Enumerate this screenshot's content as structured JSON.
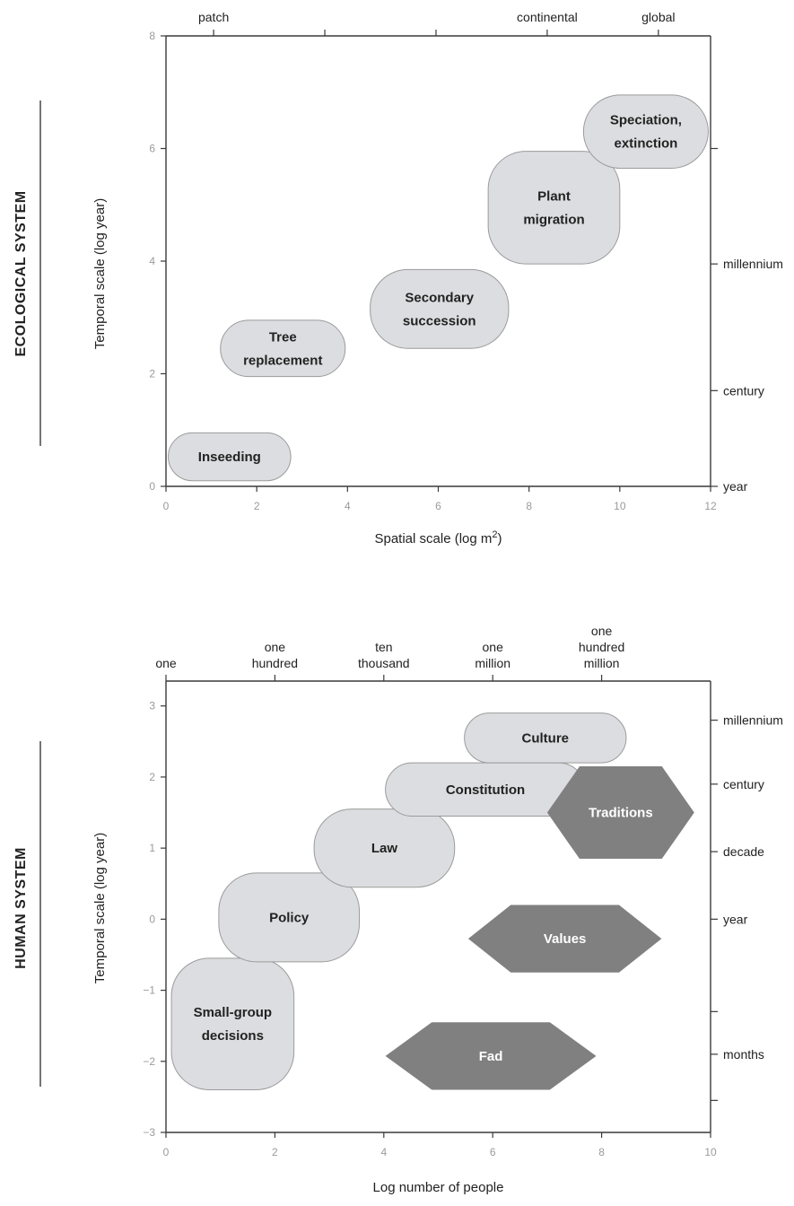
{
  "chart_data": [
    {
      "type": "scatter",
      "system_label": "ECOLOGICAL SYSTEM",
      "xlabel": "Spatial scale (log m",
      "xlabel_sup": "2",
      "xlabel_end": ")",
      "ylabel": "Temporal scale (log year)",
      "xlim": [
        0,
        12
      ],
      "ylim": [
        0,
        8
      ],
      "x_ticks": [
        0,
        2,
        4,
        6,
        8,
        10,
        12
      ],
      "y_ticks": [
        0,
        2,
        4,
        6,
        8
      ],
      "top_axis": [
        {
          "x": 1.05,
          "label": "patch"
        },
        {
          "x": 3.5,
          "label": ""
        },
        {
          "x": 5.95,
          "label": ""
        },
        {
          "x": 8.4,
          "label": "continental"
        },
        {
          "x": 10.85,
          "label": "global"
        }
      ],
      "right_axis": [
        {
          "y": 6.0,
          "label": ""
        },
        {
          "y": 3.95,
          "label": "millennium"
        },
        {
          "y": 1.7,
          "label": "century"
        },
        {
          "y": 0.0,
          "label": "year"
        }
      ],
      "regions": [
        {
          "shape": "pill",
          "lines": [
            "Inseeding"
          ],
          "x": [
            0.05,
            2.75
          ],
          "y": [
            0.1,
            0.95
          ]
        },
        {
          "shape": "pill",
          "lines": [
            "Tree",
            "replacement"
          ],
          "x": [
            1.2,
            3.95
          ],
          "y": [
            1.95,
            2.95
          ]
        },
        {
          "shape": "pill",
          "lines": [
            "Secondary",
            "succession"
          ],
          "x": [
            4.5,
            7.55
          ],
          "y": [
            2.45,
            3.85
          ]
        },
        {
          "shape": "pill",
          "lines": [
            "Plant",
            "migration"
          ],
          "x": [
            7.1,
            10.0
          ],
          "y": [
            3.95,
            5.95
          ]
        },
        {
          "shape": "pill",
          "lines": [
            "Speciation,",
            "extinction"
          ],
          "x": [
            9.2,
            11.95
          ],
          "y": [
            5.65,
            6.95
          ]
        }
      ]
    },
    {
      "type": "scatter",
      "system_label": "HUMAN SYSTEM",
      "xlabel": "Log number of people",
      "ylabel": "Temporal scale (log year)",
      "xlim": [
        0,
        10
      ],
      "ylim": [
        -3,
        3.35
      ],
      "x_ticks": [
        0,
        2,
        4,
        6,
        8,
        10
      ],
      "y_ticks": [
        3,
        2,
        1,
        0,
        -1,
        -2,
        -3
      ],
      "y_tick_labels": [
        "3",
        "2",
        "1",
        "0",
        "−1",
        "−2",
        "−3"
      ],
      "top_axis": [
        {
          "x": 0,
          "label": [
            "one"
          ]
        },
        {
          "x": 2,
          "label": [
            "one",
            "hundred"
          ]
        },
        {
          "x": 4,
          "label": [
            "ten",
            "thousand"
          ]
        },
        {
          "x": 6,
          "label": [
            "one",
            "million"
          ]
        },
        {
          "x": 8,
          "label": [
            "one",
            "hundred",
            "million"
          ]
        }
      ],
      "right_axis": [
        {
          "y": 2.8,
          "label": "millennium"
        },
        {
          "y": 1.9,
          "label": "century"
        },
        {
          "y": 0.95,
          "label": "decade"
        },
        {
          "y": 0.0,
          "label": "year"
        },
        {
          "y": -1.3,
          "label": ""
        },
        {
          "y": -1.9,
          "label": "months"
        },
        {
          "y": -2.55,
          "label": ""
        }
      ],
      "regions": [
        {
          "shape": "pill",
          "lines": [
            "Small-group",
            "decisions"
          ],
          "x": [
            0.1,
            2.35
          ],
          "y": [
            -2.4,
            -0.55
          ]
        },
        {
          "shape": "pill",
          "lines": [
            "Policy"
          ],
          "x": [
            0.97,
            3.55
          ],
          "y": [
            -0.6,
            0.65
          ]
        },
        {
          "shape": "pill",
          "lines": [
            "Law"
          ],
          "x": [
            2.72,
            5.3
          ],
          "y": [
            0.45,
            1.55
          ]
        },
        {
          "shape": "pill",
          "lines": [
            "Constitution"
          ],
          "x": [
            4.03,
            7.7
          ],
          "y": [
            1.45,
            2.2
          ]
        },
        {
          "shape": "pill",
          "lines": [
            "Culture"
          ],
          "x": [
            5.48,
            8.45
          ],
          "y": [
            2.2,
            2.9
          ]
        },
        {
          "shape": "hex",
          "lines": [
            "Traditions"
          ],
          "x": [
            7.0,
            9.7
          ],
          "y": [
            0.85,
            2.15
          ],
          "dark": true
        },
        {
          "shape": "hex",
          "lines": [
            "Values"
          ],
          "x": [
            5.55,
            9.1
          ],
          "y": [
            -0.75,
            0.2
          ],
          "dark": true
        },
        {
          "shape": "hex",
          "lines": [
            "Fad"
          ],
          "x": [
            4.03,
            7.9
          ],
          "y": [
            -2.4,
            -1.45
          ],
          "dark": true
        }
      ]
    }
  ]
}
